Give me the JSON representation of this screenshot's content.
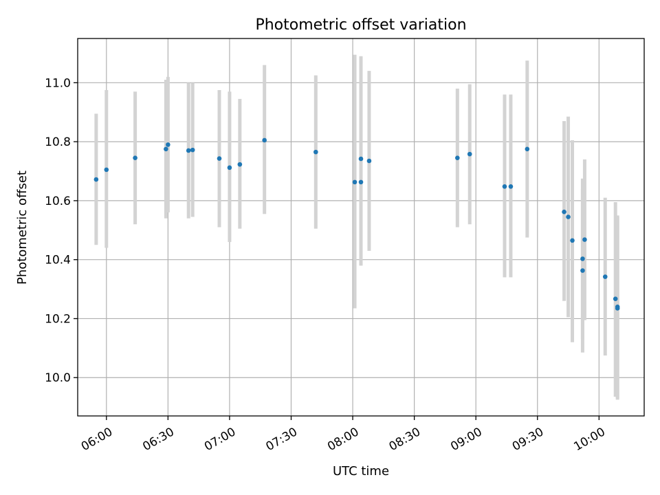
{
  "chart_data": {
    "type": "scatter",
    "title": "Photometric offset variation",
    "xlabel": "UTC time",
    "ylabel": "Photometric offset",
    "xlim": [
      "05:46",
      "10:22"
    ],
    "ylim": [
      9.87,
      11.15
    ],
    "x_ticks": [
      "06:00",
      "06:30",
      "07:00",
      "07:30",
      "08:00",
      "08:30",
      "09:00",
      "09:30",
      "10:00"
    ],
    "y_ticks": [
      10.0,
      10.2,
      10.4,
      10.6,
      10.8,
      11.0
    ],
    "y_tick_labels": [
      "10.0",
      "10.2",
      "10.4",
      "10.6",
      "10.8",
      "11.0"
    ],
    "grid": true,
    "marker_color": "#1f77b4",
    "errorbar_color": "#d3d3d3",
    "points": [
      {
        "x": "05:55",
        "y": 10.672,
        "lo": 10.45,
        "hi": 10.895
      },
      {
        "x": "06:00",
        "y": 10.705,
        "lo": 10.44,
        "hi": 10.975
      },
      {
        "x": "06:14",
        "y": 10.745,
        "lo": 10.52,
        "hi": 10.97
      },
      {
        "x": "06:29",
        "y": 10.775,
        "lo": 10.54,
        "hi": 11.01
      },
      {
        "x": "06:30",
        "y": 10.79,
        "lo": 10.56,
        "hi": 11.02
      },
      {
        "x": "06:40",
        "y": 10.77,
        "lo": 10.54,
        "hi": 11.0
      },
      {
        "x": "06:42",
        "y": 10.772,
        "lo": 10.545,
        "hi": 11.0
      },
      {
        "x": "06:55",
        "y": 10.743,
        "lo": 10.51,
        "hi": 10.975
      },
      {
        "x": "07:00",
        "y": 10.712,
        "lo": 10.46,
        "hi": 10.97
      },
      {
        "x": "07:05",
        "y": 10.723,
        "lo": 10.505,
        "hi": 10.945
      },
      {
        "x": "07:17",
        "y": 10.805,
        "lo": 10.555,
        "hi": 11.06
      },
      {
        "x": "07:42",
        "y": 10.765,
        "lo": 10.505,
        "hi": 11.025
      },
      {
        "x": "08:01",
        "y": 10.663,
        "lo": 10.235,
        "hi": 11.095
      },
      {
        "x": "08:04",
        "y": 10.663,
        "lo": 10.38,
        "hi": 10.95
      },
      {
        "x": "08:04",
        "y": 10.742,
        "lo": 10.38,
        "hi": 11.09
      },
      {
        "x": "08:08",
        "y": 10.735,
        "lo": 10.43,
        "hi": 11.04
      },
      {
        "x": "08:51",
        "y": 10.745,
        "lo": 10.51,
        "hi": 10.98
      },
      {
        "x": "08:57",
        "y": 10.758,
        "lo": 10.52,
        "hi": 10.995
      },
      {
        "x": "09:14",
        "y": 10.648,
        "lo": 10.34,
        "hi": 10.96
      },
      {
        "x": "09:17",
        "y": 10.648,
        "lo": 10.34,
        "hi": 10.96
      },
      {
        "x": "09:25",
        "y": 10.775,
        "lo": 10.475,
        "hi": 11.075
      },
      {
        "x": "09:43",
        "y": 10.562,
        "lo": 10.26,
        "hi": 10.87
      },
      {
        "x": "09:45",
        "y": 10.545,
        "lo": 10.205,
        "hi": 10.885
      },
      {
        "x": "09:47",
        "y": 10.465,
        "lo": 10.12,
        "hi": 10.805
      },
      {
        "x": "09:52",
        "y": 10.403,
        "lo": 10.13,
        "hi": 10.675
      },
      {
        "x": "09:52",
        "y": 10.363,
        "lo": 10.085,
        "hi": 10.64
      },
      {
        "x": "09:53",
        "y": 10.468,
        "lo": 10.195,
        "hi": 10.74
      },
      {
        "x": "10:03",
        "y": 10.342,
        "lo": 10.075,
        "hi": 10.61
      },
      {
        "x": "10:08",
        "y": 10.267,
        "lo": 9.935,
        "hi": 10.595
      },
      {
        "x": "10:09",
        "y": 10.24,
        "lo": 9.93,
        "hi": 10.55
      },
      {
        "x": "10:09",
        "y": 10.235,
        "lo": 9.925,
        "hi": 10.545
      }
    ]
  }
}
